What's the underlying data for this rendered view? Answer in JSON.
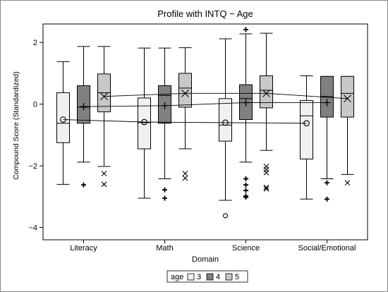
{
  "chart_data": {
    "type": "box",
    "title": "Profile with INTQ − Age",
    "xlabel": "Domain",
    "ylabel": "Compound Score (Standardized)",
    "ylim": [
      -4.4,
      2.6
    ],
    "yticks": [
      -4,
      -2,
      0,
      2
    ],
    "grid": false,
    "legend_title": "age",
    "legend_placement": "bottom-center",
    "categories": [
      "Literacy",
      "Math",
      "Science",
      "Social/Emotional"
    ],
    "series": [
      {
        "name": "3",
        "color": "#f0f0f0",
        "mean_marker": "circle",
        "boxes": [
          {
            "whisker_low": -2.6,
            "q1": -1.25,
            "median": -0.62,
            "q3": 0.37,
            "whisker_high": 1.38,
            "mean": -0.5,
            "outliers": []
          },
          {
            "whisker_low": -3.05,
            "q1": -1.45,
            "median": -0.6,
            "q3": 0.2,
            "whisker_high": 1.82,
            "mean": -0.58,
            "outliers": []
          },
          {
            "whisker_low": -3.12,
            "q1": -1.2,
            "median": -0.68,
            "q3": 0.18,
            "whisker_high": 2.12,
            "mean": -0.6,
            "outliers": [
              -3.62
            ]
          },
          {
            "whisker_low": -3.08,
            "q1": -1.78,
            "median": -0.38,
            "q3": 0.12,
            "whisker_high": 0.92,
            "mean": -0.62,
            "outliers": []
          }
        ]
      },
      {
        "name": "4",
        "color": "#808080",
        "mean_marker": "plus",
        "boxes": [
          {
            "whisker_low": -1.88,
            "q1": -0.62,
            "median": -0.1,
            "q3": 0.6,
            "whisker_high": 1.87,
            "mean": -0.08,
            "outliers": [
              -2.62
            ]
          },
          {
            "whisker_low": -2.42,
            "q1": -0.62,
            "median": 0.28,
            "q3": 0.6,
            "whisker_high": 1.82,
            "mean": -0.05,
            "outliers": [
              -2.78,
              -3.05
            ]
          },
          {
            "whisker_low": -1.88,
            "q1": -0.5,
            "median": 0.18,
            "q3": 0.63,
            "whisker_high": 2.28,
            "mean": 0.05,
            "outliers": [
              2.42,
              -2.42,
              -2.62,
              -2.8,
              -2.98,
              -3.02
            ]
          },
          {
            "whisker_low": -2.42,
            "q1": -0.42,
            "median": 0.25,
            "q3": 0.9,
            "whisker_high": 0.9,
            "mean": 0.05,
            "outliers": [
              -2.55,
              -3.08
            ]
          }
        ]
      },
      {
        "name": "5",
        "color": "#c8c8c8",
        "mean_marker": "x",
        "boxes": [
          {
            "whisker_low": -2.02,
            "q1": -0.25,
            "median": 0.37,
            "q3": 0.98,
            "whisker_high": 1.87,
            "mean": 0.25,
            "outliers": [
              -2.25,
              -2.6
            ]
          },
          {
            "whisker_low": -1.45,
            "q1": -0.1,
            "median": 0.52,
            "q3": 1.0,
            "whisker_high": 1.83,
            "mean": 0.35,
            "outliers": [
              -2.25,
              -2.4
            ]
          },
          {
            "whisker_low": -1.5,
            "q1": -0.12,
            "median": 0.45,
            "q3": 0.92,
            "whisker_high": 2.3,
            "mean": 0.35,
            "outliers": [
              -2.02,
              -2.12,
              -2.22,
              -2.7,
              -2.75
            ]
          },
          {
            "whisker_low": -2.28,
            "q1": -0.42,
            "median": 0.35,
            "q3": 0.9,
            "whisker_high": 0.9,
            "mean": 0.18,
            "outliers": [
              -2.55
            ]
          }
        ]
      }
    ]
  }
}
